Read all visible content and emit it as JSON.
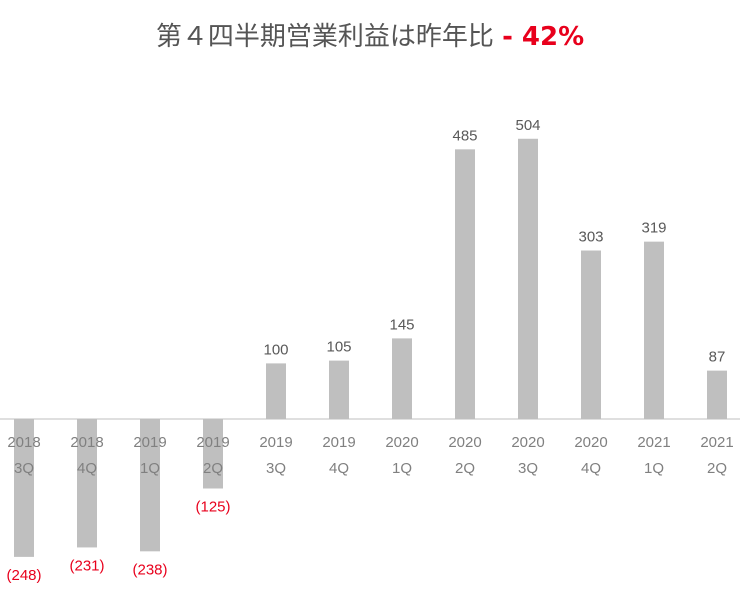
{
  "chart_data": {
    "type": "bar",
    "title": "第４四半期営業利益は昨年比",
    "title_highlight": "- 42%",
    "xlabel": "",
    "ylabel": "",
    "categories": [
      [
        "2018",
        "3Q"
      ],
      [
        "2018",
        "4Q"
      ],
      [
        "2019",
        "1Q"
      ],
      [
        "2019",
        "2Q"
      ],
      [
        "2019",
        "3Q"
      ],
      [
        "2019",
        "4Q"
      ],
      [
        "2020",
        "1Q"
      ],
      [
        "2020",
        "2Q"
      ],
      [
        "2020",
        "3Q"
      ],
      [
        "2020",
        "4Q"
      ],
      [
        "2021",
        "1Q"
      ],
      [
        "2021",
        "2Q"
      ]
    ],
    "values": [
      -248,
      -231,
      -238,
      -125,
      100,
      105,
      145,
      485,
      504,
      303,
      319,
      87
    ],
    "value_labels": [
      "(248)",
      "(231)",
      "(238)",
      "(125)",
      "100",
      "105",
      "145",
      "485",
      "504",
      "303",
      "319",
      "87"
    ],
    "ylim": [
      -270,
      560
    ],
    "grid": false,
    "legend": "none",
    "colors": {
      "bar": "#bfbfbf",
      "negative_label": "#e8001c",
      "highlight": "#e8001c"
    }
  }
}
